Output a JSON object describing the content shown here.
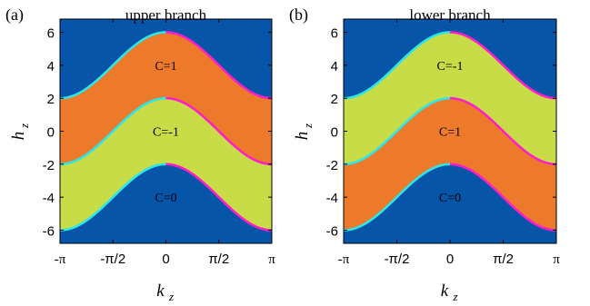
{
  "chart_data": [
    {
      "type": "area",
      "panel_label": "(a)",
      "title": "upper branch",
      "xlabel_main": "k",
      "xlabel_sub": "z",
      "ylabel_main": "h",
      "ylabel_sub": "z",
      "xlim": [
        -3.14159,
        3.14159
      ],
      "ylim": [
        -6.8,
        6.8
      ],
      "x_ticks": [
        {
          "value": -3.14159,
          "label": "-π"
        },
        {
          "value": -1.5708,
          "label": "-π/2"
        },
        {
          "value": 0,
          "label": "0"
        },
        {
          "value": 1.5708,
          "label": "π/2"
        },
        {
          "value": 3.14159,
          "label": "π"
        }
      ],
      "y_ticks": [
        {
          "value": 6,
          "label": "6"
        },
        {
          "value": 4,
          "label": "4"
        },
        {
          "value": 2,
          "label": "2"
        },
        {
          "value": 0,
          "label": "0"
        },
        {
          "value": -2,
          "label": "-2"
        },
        {
          "value": -4,
          "label": "-4"
        },
        {
          "value": -6,
          "label": "-6"
        }
      ],
      "boundaries": [
        {
          "offset": 4
        },
        {
          "offset": 0
        },
        {
          "offset": -4
        }
      ],
      "boundary_amplitude": 2,
      "boundary_colors": {
        "left": "#2ee6e6",
        "right": "#ff1fc8"
      },
      "regions": [
        {
          "label": "",
          "color": "#0655a8",
          "label_y": null
        },
        {
          "label": "C=1",
          "color": "#ec7a2a",
          "label_y": 4.0
        },
        {
          "label": "C=-1",
          "color": "#c8dc48",
          "label_y": 0.0
        },
        {
          "label": "C=0",
          "color": "#0655a8",
          "label_y": -4.0
        }
      ]
    },
    {
      "type": "area",
      "panel_label": "(b)",
      "title": "lower branch",
      "xlabel_main": "k",
      "xlabel_sub": "z",
      "ylabel_main": "h",
      "ylabel_sub": "z",
      "xlim": [
        -3.14159,
        3.14159
      ],
      "ylim": [
        -6.8,
        6.8
      ],
      "x_ticks": [
        {
          "value": -3.14159,
          "label": "-π"
        },
        {
          "value": -1.5708,
          "label": "-π/2"
        },
        {
          "value": 0,
          "label": "0"
        },
        {
          "value": 1.5708,
          "label": "π/2"
        },
        {
          "value": 3.14159,
          "label": "π"
        }
      ],
      "y_ticks": [
        {
          "value": 6,
          "label": "6"
        },
        {
          "value": 4,
          "label": "4"
        },
        {
          "value": 2,
          "label": "2"
        },
        {
          "value": 0,
          "label": "0"
        },
        {
          "value": -2,
          "label": "-2"
        },
        {
          "value": -4,
          "label": "-4"
        },
        {
          "value": -6,
          "label": "-6"
        }
      ],
      "boundaries": [
        {
          "offset": 4
        },
        {
          "offset": 0
        },
        {
          "offset": -4
        }
      ],
      "boundary_amplitude": 2,
      "boundary_colors": {
        "left": "#2ee6e6",
        "right": "#ff1fc8"
      },
      "regions": [
        {
          "label": "",
          "color": "#0655a8",
          "label_y": null
        },
        {
          "label": "C=-1",
          "color": "#c8dc48",
          "label_y": 4.0
        },
        {
          "label": "C=1",
          "color": "#ec7a2a",
          "label_y": 0.0
        },
        {
          "label": "C=0",
          "color": "#0655a8",
          "label_y": -4.0
        }
      ]
    }
  ]
}
